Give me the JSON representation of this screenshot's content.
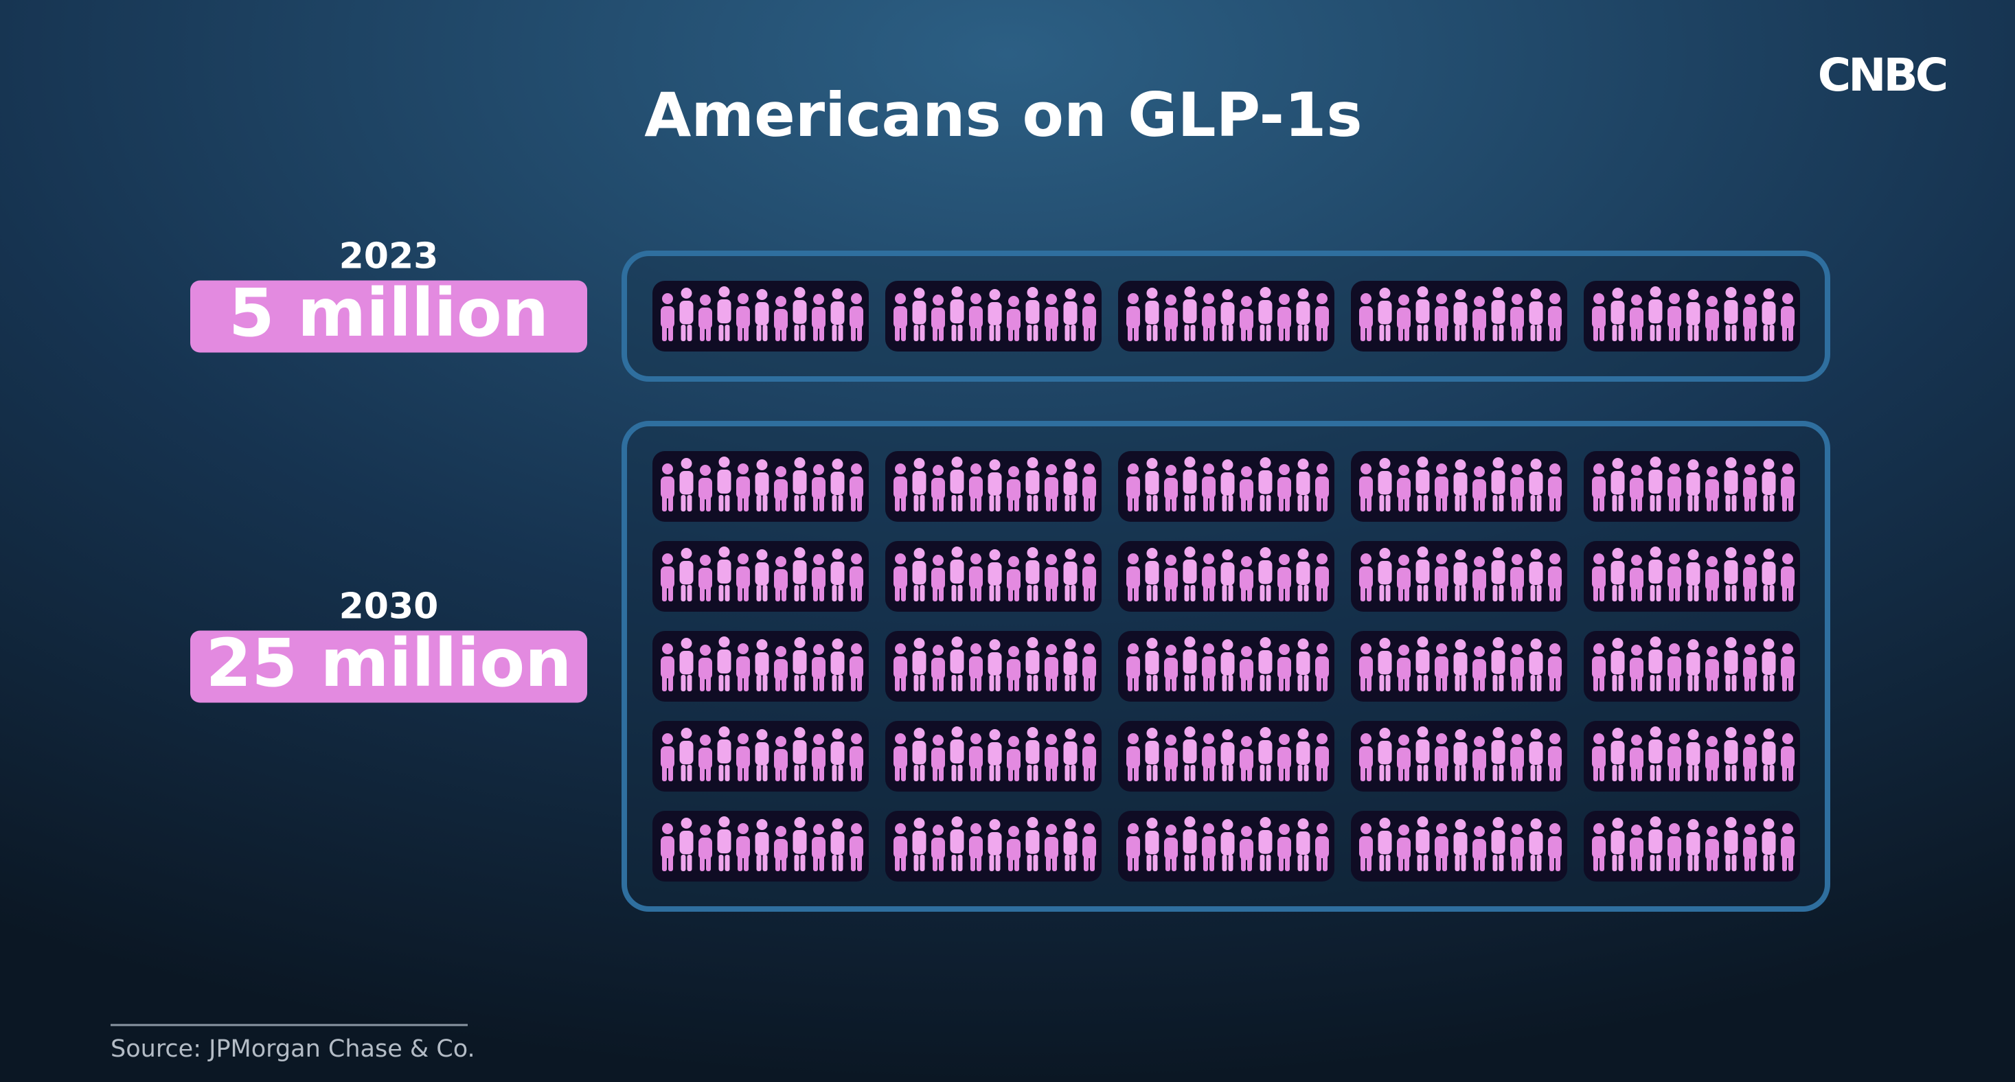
{
  "chart_data": {
    "type": "pictogram",
    "title": "Americans on GLP-1s",
    "categories": [
      "2023",
      "2030"
    ],
    "values": [
      5,
      25
    ],
    "value_labels": [
      "5 million",
      "25 million"
    ],
    "color": "#e38ae0",
    "source": "Source: JPMorgan Chase & Co.",
    "logo": "CNBC"
  }
}
